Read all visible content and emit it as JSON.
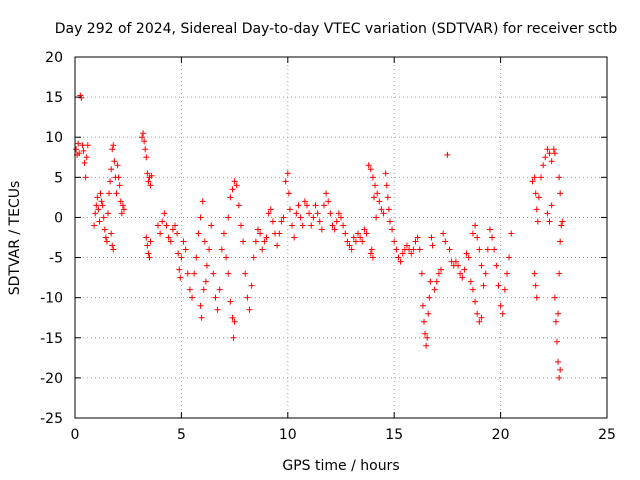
{
  "chart_data": {
    "type": "scatter",
    "title": "Day 292 of 2024, Sidereal Day-to-day VTEC variation (SDTVAR) for receiver sctb",
    "xlabel": "GPS time / hours",
    "ylabel": "SDTVAR / TECUs",
    "xlim": [
      0,
      25
    ],
    "ylim": [
      -25,
      20
    ],
    "xticks": [
      0,
      5,
      10,
      15,
      20,
      25
    ],
    "yticks": [
      -25,
      -20,
      -15,
      -10,
      -5,
      0,
      5,
      10,
      15,
      20
    ],
    "grid": true,
    "marker": "+",
    "color": "#ff0000",
    "series": [
      {
        "name": "sctb",
        "points": [
          [
            0.05,
            8.5
          ],
          [
            0.1,
            7.8
          ],
          [
            0.15,
            9.2
          ],
          [
            0.2,
            8.0
          ],
          [
            0.25,
            15.2
          ],
          [
            0.3,
            14.9
          ],
          [
            0.35,
            9.0
          ],
          [
            0.4,
            8.3
          ],
          [
            0.45,
            6.8
          ],
          [
            0.5,
            5.0
          ],
          [
            0.55,
            7.5
          ],
          [
            0.6,
            9.0
          ],
          [
            0.9,
            -1.0
          ],
          [
            0.95,
            0.5
          ],
          [
            1.0,
            1.5
          ],
          [
            1.05,
            2.5
          ],
          [
            1.1,
            1.0
          ],
          [
            1.15,
            -0.5
          ],
          [
            1.2,
            3.0
          ],
          [
            1.25,
            2.0
          ],
          [
            1.3,
            1.5
          ],
          [
            1.35,
            0.0
          ],
          [
            1.4,
            -1.5
          ],
          [
            1.45,
            -2.5
          ],
          [
            1.5,
            -3.0
          ],
          [
            1.55,
            0.5
          ],
          [
            1.6,
            3.0
          ],
          [
            1.65,
            4.5
          ],
          [
            1.7,
            6.0
          ],
          [
            1.75,
            8.5
          ],
          [
            1.8,
            9.0
          ],
          [
            1.85,
            7.0
          ],
          [
            1.9,
            5.0
          ],
          [
            1.95,
            3.0
          ],
          [
            2.0,
            6.5
          ],
          [
            2.05,
            5.0
          ],
          [
            2.1,
            4.0
          ],
          [
            2.15,
            2.0
          ],
          [
            2.2,
            0.5
          ],
          [
            2.25,
            1.5
          ],
          [
            2.3,
            1.0
          ],
          [
            1.75,
            -3.5
          ],
          [
            1.8,
            -4.0
          ],
          [
            1.7,
            -2.0
          ],
          [
            3.15,
            10.0
          ],
          [
            3.2,
            10.5
          ],
          [
            3.25,
            9.5
          ],
          [
            3.3,
            8.5
          ],
          [
            3.35,
            7.5
          ],
          [
            3.4,
            5.5
          ],
          [
            3.45,
            4.5
          ],
          [
            3.5,
            5.0
          ],
          [
            3.55,
            4.0
          ],
          [
            3.6,
            5.2
          ],
          [
            3.35,
            -2.5
          ],
          [
            3.4,
            -3.5
          ],
          [
            3.45,
            -4.5
          ],
          [
            3.5,
            -5.0
          ],
          [
            3.55,
            -3.0
          ],
          [
            3.9,
            -1.0
          ],
          [
            4.0,
            -2.0
          ],
          [
            4.1,
            -0.5
          ],
          [
            4.2,
            0.5
          ],
          [
            4.3,
            -1.0
          ],
          [
            4.4,
            -2.5
          ],
          [
            4.5,
            -3.0
          ],
          [
            4.6,
            -1.5
          ],
          [
            4.7,
            -1.0
          ],
          [
            4.8,
            -2.0
          ],
          [
            4.85,
            -4.5
          ],
          [
            4.9,
            -6.5
          ],
          [
            4.95,
            -7.5
          ],
          [
            5.0,
            -5.0
          ],
          [
            5.1,
            -3.0
          ],
          [
            5.2,
            -4.0
          ],
          [
            5.3,
            -7.0
          ],
          [
            5.4,
            -9.0
          ],
          [
            5.5,
            -10.0
          ],
          [
            5.6,
            -7.0
          ],
          [
            5.7,
            -5.0
          ],
          [
            5.8,
            -2.0
          ],
          [
            5.9,
            0.0
          ],
          [
            6.0,
            2.0
          ],
          [
            6.1,
            -3.0
          ],
          [
            6.2,
            -6.0
          ],
          [
            5.95,
            -12.5
          ],
          [
            5.9,
            -11.0
          ],
          [
            6.05,
            -9.0
          ],
          [
            6.15,
            -8.0
          ],
          [
            6.3,
            -4.0
          ],
          [
            6.4,
            -1.0
          ],
          [
            6.5,
            -7.0
          ],
          [
            6.6,
            -10.0
          ],
          [
            6.7,
            -11.5
          ],
          [
            6.8,
            -9.0
          ],
          [
            6.9,
            -4.0
          ],
          [
            7.0,
            -2.0
          ],
          [
            7.1,
            -5.0
          ],
          [
            7.2,
            -7.0
          ],
          [
            7.3,
            -10.5
          ],
          [
            7.4,
            -12.5
          ],
          [
            7.45,
            -15.0
          ],
          [
            7.5,
            -13.0
          ],
          [
            7.2,
            0.0
          ],
          [
            7.3,
            2.5
          ],
          [
            7.4,
            3.5
          ],
          [
            7.5,
            4.5
          ],
          [
            7.6,
            4.0
          ],
          [
            7.7,
            1.5
          ],
          [
            7.8,
            -1.0
          ],
          [
            7.9,
            -3.0
          ],
          [
            8.0,
            -7.0
          ],
          [
            8.1,
            -10.0
          ],
          [
            8.2,
            -11.5
          ],
          [
            8.3,
            -8.5
          ],
          [
            8.4,
            -5.0
          ],
          [
            8.5,
            -3.0
          ],
          [
            8.6,
            -1.5
          ],
          [
            8.7,
            -2.0
          ],
          [
            8.8,
            -4.0
          ],
          [
            8.9,
            -3.0
          ],
          [
            9.0,
            -2.5
          ],
          [
            9.1,
            0.5
          ],
          [
            9.2,
            1.0
          ],
          [
            9.3,
            -0.5
          ],
          [
            9.4,
            -2.0
          ],
          [
            9.5,
            -3.5
          ],
          [
            9.6,
            -2.0
          ],
          [
            9.7,
            -0.5
          ],
          [
            9.8,
            0.0
          ],
          [
            9.9,
            4.5
          ],
          [
            10.0,
            5.5
          ],
          [
            10.05,
            3.0
          ],
          [
            10.1,
            1.0
          ],
          [
            10.2,
            -1.0
          ],
          [
            10.3,
            -2.5
          ],
          [
            10.4,
            0.5
          ],
          [
            10.5,
            1.5
          ],
          [
            10.6,
            0.0
          ],
          [
            10.7,
            -1.0
          ],
          [
            10.8,
            2.0
          ],
          [
            10.9,
            1.5
          ],
          [
            11.0,
            0.5
          ],
          [
            11.1,
            -1.0
          ],
          [
            11.2,
            0.0
          ],
          [
            11.3,
            1.5
          ],
          [
            11.4,
            0.5
          ],
          [
            11.5,
            -0.5
          ],
          [
            11.6,
            -1.5
          ],
          [
            11.7,
            1.5
          ],
          [
            11.8,
            3.0
          ],
          [
            11.9,
            2.0
          ],
          [
            12.0,
            0.5
          ],
          [
            12.1,
            -1.0
          ],
          [
            12.2,
            -1.5
          ],
          [
            12.3,
            -0.5
          ],
          [
            12.4,
            0.5
          ],
          [
            12.5,
            0.0
          ],
          [
            12.6,
            -1.0
          ],
          [
            12.7,
            -2.0
          ],
          [
            12.8,
            -3.0
          ],
          [
            12.9,
            -3.5
          ],
          [
            13.0,
            -4.0
          ],
          [
            13.1,
            -2.5
          ],
          [
            13.2,
            -3.0
          ],
          [
            13.3,
            -2.0
          ],
          [
            13.4,
            -2.5
          ],
          [
            13.5,
            -3.0
          ],
          [
            13.6,
            -1.5
          ],
          [
            13.7,
            -2.0
          ],
          [
            13.8,
            6.5
          ],
          [
            13.9,
            6.0
          ],
          [
            14.0,
            5.0
          ],
          [
            14.1,
            4.0
          ],
          [
            14.2,
            3.0
          ],
          [
            14.3,
            2.0
          ],
          [
            14.4,
            1.0
          ],
          [
            14.5,
            0.5
          ],
          [
            13.9,
            -4.5
          ],
          [
            14.0,
            -5.0
          ],
          [
            13.95,
            -4.0
          ],
          [
            14.05,
            2.5
          ],
          [
            14.15,
            0.0
          ],
          [
            14.6,
            5.5
          ],
          [
            14.65,
            4.0
          ],
          [
            14.7,
            2.5
          ],
          [
            14.75,
            1.0
          ],
          [
            14.8,
            -0.5
          ],
          [
            14.9,
            -1.5
          ],
          [
            15.0,
            -3.0
          ],
          [
            15.1,
            -4.0
          ],
          [
            15.2,
            -5.0
          ],
          [
            15.3,
            -5.5
          ],
          [
            15.4,
            -4.5
          ],
          [
            15.5,
            -4.0
          ],
          [
            15.6,
            -3.5
          ],
          [
            15.7,
            -4.0
          ],
          [
            15.8,
            -4.5
          ],
          [
            15.9,
            -4.0
          ],
          [
            16.0,
            -3.0
          ],
          [
            16.1,
            -2.5
          ],
          [
            16.2,
            -4.0
          ],
          [
            16.3,
            -7.0
          ],
          [
            16.35,
            -11.0
          ],
          [
            16.4,
            -13.0
          ],
          [
            16.45,
            -14.5
          ],
          [
            16.5,
            -16.0
          ],
          [
            16.55,
            -15.0
          ],
          [
            16.6,
            -12.0
          ],
          [
            16.65,
            -10.0
          ],
          [
            16.7,
            -8.0
          ],
          [
            16.75,
            -2.5
          ],
          [
            16.8,
            -3.5
          ],
          [
            16.9,
            -9.0
          ],
          [
            17.0,
            -8.0
          ],
          [
            17.1,
            -7.0
          ],
          [
            17.2,
            -6.5
          ],
          [
            17.3,
            -2.0
          ],
          [
            17.4,
            -3.0
          ],
          [
            17.5,
            7.8
          ],
          [
            17.6,
            -4.0
          ],
          [
            17.7,
            -5.5
          ],
          [
            17.8,
            -6.0
          ],
          [
            17.9,
            -5.5
          ],
          [
            18.0,
            -6.0
          ],
          [
            18.1,
            -7.0
          ],
          [
            18.2,
            -7.5
          ],
          [
            18.3,
            -6.5
          ],
          [
            18.4,
            -4.5
          ],
          [
            18.5,
            -5.0
          ],
          [
            18.6,
            -8.0
          ],
          [
            18.7,
            -9.0
          ],
          [
            18.8,
            -10.5
          ],
          [
            18.9,
            -12.0
          ],
          [
            19.0,
            -13.0
          ],
          [
            19.1,
            -12.5
          ],
          [
            18.7,
            -2.0
          ],
          [
            18.8,
            -1.0
          ],
          [
            18.9,
            -2.5
          ],
          [
            19.0,
            -4.0
          ],
          [
            19.1,
            -6.0
          ],
          [
            19.2,
            -8.5
          ],
          [
            19.3,
            -7.0
          ],
          [
            19.4,
            -4.0
          ],
          [
            19.5,
            -1.5
          ],
          [
            19.6,
            -2.5
          ],
          [
            19.7,
            -4.0
          ],
          [
            19.8,
            -6.0
          ],
          [
            19.9,
            -8.5
          ],
          [
            20.0,
            -11.0
          ],
          [
            20.1,
            -12.0
          ],
          [
            20.2,
            -9.0
          ],
          [
            20.3,
            -7.0
          ],
          [
            20.4,
            -5.0
          ],
          [
            20.5,
            -2.0
          ],
          [
            21.5,
            4.5
          ],
          [
            21.6,
            5.0
          ],
          [
            21.65,
            3.0
          ],
          [
            21.7,
            1.0
          ],
          [
            21.75,
            -0.5
          ],
          [
            21.6,
            -7.0
          ],
          [
            21.65,
            -8.5
          ],
          [
            21.7,
            -10.0
          ],
          [
            21.8,
            2.5
          ],
          [
            21.9,
            5.0
          ],
          [
            22.0,
            6.5
          ],
          [
            22.1,
            7.5
          ],
          [
            22.2,
            8.5
          ],
          [
            22.3,
            8.0
          ],
          [
            22.4,
            7.0
          ],
          [
            22.5,
            8.5
          ],
          [
            22.55,
            8.0
          ],
          [
            22.2,
            0.5
          ],
          [
            22.3,
            -0.5
          ],
          [
            22.4,
            1.5
          ],
          [
            22.55,
            -10.0
          ],
          [
            22.6,
            -13.0
          ],
          [
            22.65,
            -15.5
          ],
          [
            22.7,
            -18.0
          ],
          [
            22.75,
            -20.0
          ],
          [
            22.8,
            -19.0
          ],
          [
            22.7,
            -12.0
          ],
          [
            22.75,
            -7.0
          ],
          [
            22.8,
            -3.0
          ],
          [
            22.85,
            -1.0
          ],
          [
            22.9,
            -0.5
          ],
          [
            22.8,
            3.0
          ],
          [
            22.75,
            5.0
          ]
        ]
      }
    ]
  }
}
